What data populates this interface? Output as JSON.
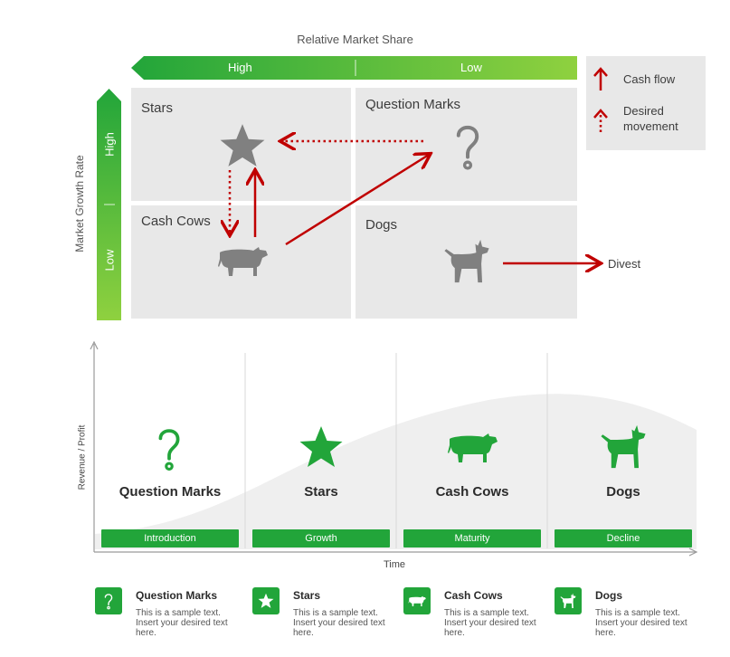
{
  "matrix": {
    "x_axis_title": "Relative Market Share",
    "x_high": "High",
    "x_low": "Low",
    "y_axis_title": "Market Growth Rate",
    "y_high": "High",
    "y_low": "Low",
    "quadrants": {
      "stars": "Stars",
      "question_marks": "Question Marks",
      "cash_cows": "Cash Cows",
      "dogs": "Dogs"
    },
    "divest_label": "Divest"
  },
  "legend": {
    "cash_flow": "Cash flow",
    "desired_movement": "Desired movement"
  },
  "lifecycle": {
    "y_axis_title": "Revenue / Profit",
    "x_axis_title": "Time",
    "stages": [
      {
        "title": "Question Marks",
        "phase": "Introduction",
        "icon": "question-mark-icon"
      },
      {
        "title": "Stars",
        "phase": "Growth",
        "icon": "star-icon"
      },
      {
        "title": "Cash Cows",
        "phase": "Maturity",
        "icon": "cow-icon"
      },
      {
        "title": "Dogs",
        "phase": "Decline",
        "icon": "dog-icon"
      }
    ]
  },
  "footer": [
    {
      "title": "Question Marks",
      "text": "This is a sample text. Insert your desired text here."
    },
    {
      "title": "Stars",
      "text": "This is a sample text. Insert your desired text here."
    },
    {
      "title": "Cash Cows",
      "text": "This is a sample text. Insert your desired text here."
    },
    {
      "title": "Dogs",
      "text": "This is a sample text. Insert your desired text here."
    }
  ],
  "colors": {
    "green": "#22a53a",
    "green_light": "#8fd13f",
    "red": "#c00000",
    "gray_icon": "#808080",
    "quad_bg": "#e8e8e8"
  }
}
